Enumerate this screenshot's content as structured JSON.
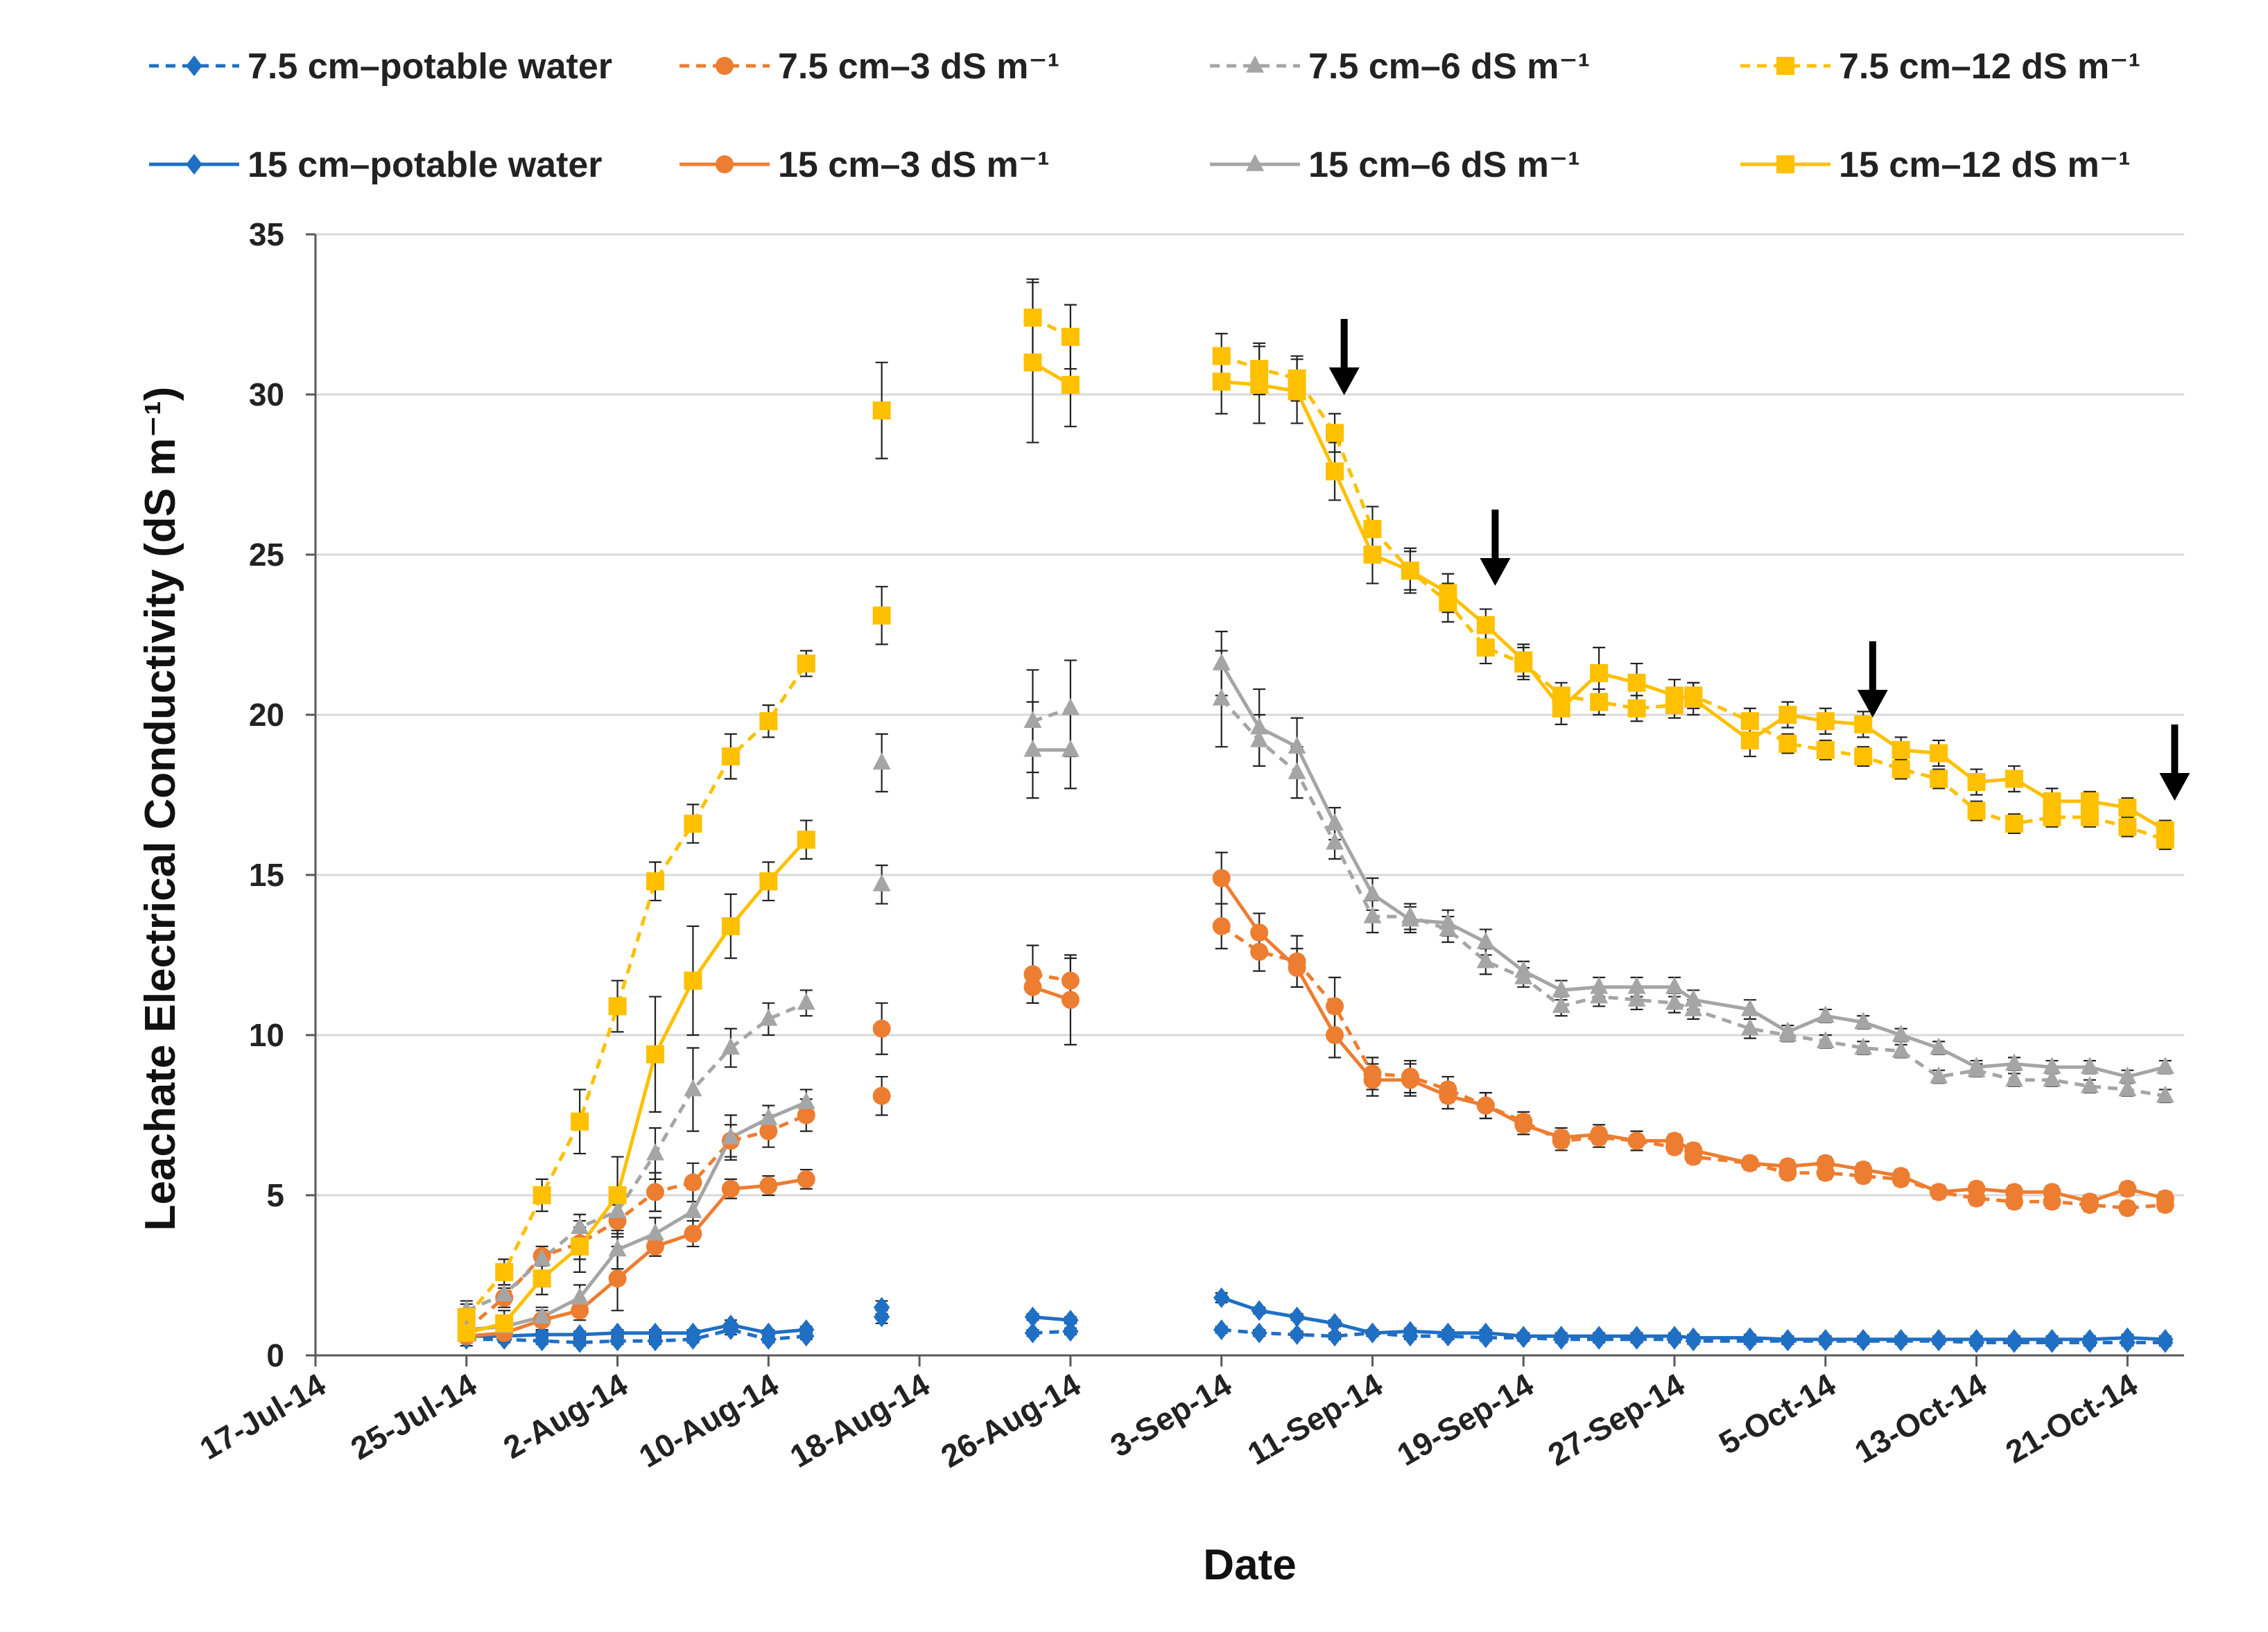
{
  "chart_data": {
    "type": "line",
    "title": "",
    "xlabel": "Date",
    "ylabel": "Leachate Electrical Conductivity (dS m⁻¹)",
    "ylim": [
      0,
      35
    ],
    "yticks": [
      0,
      5,
      10,
      15,
      20,
      25,
      30,
      35
    ],
    "x_is_day_offset_from": "17-Jul-14",
    "xlim": [
      0,
      99
    ],
    "xticks": [
      {
        "day": 0,
        "label": "17-Jul-14"
      },
      {
        "day": 8,
        "label": "25-Jul-14"
      },
      {
        "day": 16,
        "label": "2-Aug-14"
      },
      {
        "day": 24,
        "label": "10-Aug-14"
      },
      {
        "day": 32,
        "label": "18-Aug-14"
      },
      {
        "day": 40,
        "label": "26-Aug-14"
      },
      {
        "day": 48,
        "label": "3-Sep-14"
      },
      {
        "day": 56,
        "label": "11-Sep-14"
      },
      {
        "day": 64,
        "label": "19-Sep-14"
      },
      {
        "day": 72,
        "label": "27-Sep-14"
      },
      {
        "day": 80,
        "label": "5-Oct-14"
      },
      {
        "day": 88,
        "label": "13-Oct-14"
      },
      {
        "day": 96,
        "label": "21-Oct-14"
      }
    ],
    "grid": "horizontal",
    "legend_position": "top",
    "annotations": [
      {
        "type": "arrow",
        "day": 54.5,
        "note": "downward arrow"
      },
      {
        "type": "arrow",
        "day": 62.5,
        "note": "downward arrow"
      },
      {
        "type": "arrow",
        "day": 82.5,
        "note": "downward arrow"
      },
      {
        "type": "arrow",
        "day": 98.5,
        "note": "downward arrow"
      }
    ],
    "series": [
      {
        "name": "7.5 cm–potable water",
        "color": "#1f6fc4",
        "dash": true,
        "marker": "diamond",
        "x": [
          8,
          10,
          12,
          14,
          16,
          18,
          20,
          22,
          24,
          26,
          30,
          38,
          40,
          48,
          50,
          52,
          54,
          56,
          58,
          60,
          62,
          64,
          66,
          68,
          70,
          72,
          73,
          76,
          78,
          80,
          82,
          84,
          86,
          88,
          90,
          92,
          94,
          96,
          98
        ],
        "y": [
          0.5,
          0.5,
          0.45,
          0.4,
          0.45,
          0.45,
          0.5,
          0.8,
          0.5,
          0.6,
          1.2,
          0.7,
          0.75,
          0.8,
          0.7,
          0.65,
          0.6,
          0.7,
          0.6,
          0.6,
          0.55,
          0.55,
          0.5,
          0.5,
          0.5,
          0.5,
          0.45,
          0.45,
          0.45,
          0.45,
          0.45,
          0.45,
          0.45,
          0.4,
          0.4,
          0.4,
          0.4,
          0.4,
          0.4
        ],
        "err": [
          0.1,
          0.1,
          0.1,
          0.1,
          0.1,
          0.1,
          0.1,
          0.15,
          0.1,
          0.1,
          0.2,
          0.1,
          0.1,
          0.1,
          0.1,
          0.1,
          0.1,
          0.1,
          0.1,
          0.1,
          0.1,
          0.1,
          0.1,
          0.1,
          0.1,
          0.1,
          0.1,
          0.1,
          0.1,
          0.1,
          0.1,
          0.1,
          0.1,
          0.1,
          0.1,
          0.1,
          0.1,
          0.1,
          0.1
        ]
      },
      {
        "name": "7.5 cm–3 dS m⁻¹",
        "color": "#ed7d31",
        "dash": true,
        "marker": "circle",
        "x": [
          8,
          10,
          12,
          14,
          16,
          18,
          20,
          22,
          24,
          26,
          30,
          38,
          40,
          48,
          50,
          52,
          54,
          56,
          58,
          60,
          62,
          64,
          66,
          68,
          70,
          72,
          73,
          76,
          78,
          80,
          82,
          84,
          86,
          88,
          90,
          92,
          94,
          96,
          98
        ],
        "y": [
          0.8,
          1.8,
          3.1,
          3.5,
          4.2,
          5.1,
          5.4,
          6.7,
          7.0,
          7.5,
          10.2,
          11.9,
          11.7,
          13.4,
          12.6,
          12.3,
          10.9,
          8.8,
          8.7,
          8.3,
          7.8,
          7.3,
          6.7,
          6.8,
          6.7,
          6.5,
          6.2,
          6.0,
          5.7,
          5.7,
          5.6,
          5.5,
          5.1,
          4.9,
          4.8,
          4.8,
          4.7,
          4.6,
          4.7
        ],
        "err": [
          0.3,
          0.3,
          0.3,
          0.5,
          0.5,
          0.6,
          0.6,
          0.5,
          0.5,
          0.5,
          0.8,
          0.9,
          0.7,
          0.7,
          0.6,
          0.8,
          0.9,
          0.5,
          0.5,
          0.4,
          0.4,
          0.3,
          0.3,
          0.3,
          0.3,
          0.2,
          0.2,
          0.2,
          0.2,
          0.2,
          0.2,
          0.2,
          0.2,
          0.2,
          0.2,
          0.2,
          0.2,
          0.2,
          0.2
        ]
      },
      {
        "name": "7.5 cm–6 dS m⁻¹",
        "color": "#a5a5a5",
        "dash": true,
        "marker": "triangle",
        "x": [
          8,
          10,
          12,
          14,
          16,
          18,
          20,
          22,
          24,
          26,
          30,
          38,
          40,
          48,
          50,
          52,
          54,
          56,
          58,
          60,
          62,
          64,
          66,
          68,
          70,
          72,
          73,
          76,
          78,
          80,
          82,
          84,
          86,
          88,
          90,
          92,
          94,
          96,
          98
        ],
        "y": [
          1.4,
          1.9,
          3.0,
          4.0,
          4.5,
          6.3,
          8.3,
          9.6,
          10.5,
          11.0,
          18.5,
          19.8,
          20.2,
          20.5,
          19.2,
          18.2,
          16.0,
          13.7,
          13.7,
          13.3,
          12.3,
          11.8,
          10.9,
          11.2,
          11.1,
          11.0,
          10.8,
          10.2,
          10.0,
          9.8,
          9.6,
          9.5,
          8.7,
          8.9,
          8.6,
          8.6,
          8.4,
          8.3,
          8.1
        ],
        "err": [
          0.3,
          0.3,
          0.4,
          0.4,
          0.5,
          0.8,
          1.3,
          0.6,
          0.5,
          0.4,
          0.9,
          1.6,
          1.5,
          1.5,
          0.8,
          0.8,
          0.5,
          0.5,
          0.4,
          0.4,
          0.4,
          0.3,
          0.3,
          0.3,
          0.3,
          0.3,
          0.3,
          0.3,
          0.2,
          0.2,
          0.2,
          0.2,
          0.2,
          0.2,
          0.2,
          0.2,
          0.2,
          0.2,
          0.2
        ]
      },
      {
        "name": "7.5 cm–12 dS m⁻¹",
        "color": "#ffc000",
        "dash": true,
        "marker": "square",
        "x": [
          8,
          10,
          12,
          14,
          16,
          18,
          20,
          22,
          24,
          26,
          30,
          38,
          40,
          48,
          50,
          52,
          54,
          56,
          58,
          60,
          62,
          64,
          66,
          68,
          70,
          72,
          73,
          76,
          78,
          80,
          82,
          84,
          86,
          88,
          90,
          92,
          94,
          96,
          98
        ],
        "y": [
          1.2,
          2.6,
          5.0,
          7.3,
          10.9,
          14.8,
          16.6,
          18.7,
          19.8,
          21.6,
          29.5,
          32.4,
          31.8,
          31.2,
          30.8,
          30.5,
          28.8,
          25.8,
          24.5,
          23.5,
          22.1,
          21.6,
          20.6,
          20.4,
          20.2,
          20.3,
          20.6,
          19.8,
          19.1,
          18.9,
          18.7,
          18.3,
          18.0,
          17.0,
          16.6,
          16.8,
          16.8,
          16.5,
          16.1
        ],
        "err": [
          0.4,
          0.4,
          0.5,
          1.0,
          0.8,
          0.6,
          0.6,
          0.7,
          0.5,
          0.4,
          1.5,
          1.2,
          1.0,
          0.7,
          0.8,
          0.7,
          0.6,
          0.7,
          0.6,
          0.6,
          0.5,
          0.5,
          0.4,
          0.4,
          0.4,
          0.4,
          0.4,
          0.4,
          0.3,
          0.3,
          0.3,
          0.3,
          0.3,
          0.3,
          0.3,
          0.3,
          0.3,
          0.3,
          0.3
        ]
      },
      {
        "name": "15 cm–potable water",
        "color": "#1f6fc4",
        "dash": false,
        "marker": "diamond",
        "x": [
          8,
          10,
          12,
          14,
          16,
          18,
          20,
          22,
          24,
          26,
          30,
          38,
          40,
          48,
          50,
          52,
          54,
          56,
          58,
          60,
          62,
          64,
          66,
          68,
          70,
          72,
          73,
          76,
          78,
          80,
          82,
          84,
          86,
          88,
          90,
          92,
          94,
          96,
          98
        ],
        "y": [
          0.6,
          0.6,
          0.65,
          0.65,
          0.7,
          0.7,
          0.7,
          0.95,
          0.7,
          0.8,
          1.5,
          1.2,
          1.1,
          1.8,
          1.4,
          1.2,
          1.0,
          0.7,
          0.75,
          0.7,
          0.7,
          0.6,
          0.6,
          0.6,
          0.6,
          0.6,
          0.55,
          0.55,
          0.5,
          0.5,
          0.5,
          0.5,
          0.5,
          0.5,
          0.5,
          0.5,
          0.5,
          0.55,
          0.5
        ],
        "err": [
          0.1,
          0.1,
          0.1,
          0.1,
          0.1,
          0.1,
          0.1,
          0.15,
          0.1,
          0.1,
          0.2,
          0.1,
          0.1,
          0.15,
          0.1,
          0.1,
          0.1,
          0.1,
          0.1,
          0.1,
          0.1,
          0.1,
          0.1,
          0.1,
          0.1,
          0.1,
          0.1,
          0.1,
          0.1,
          0.1,
          0.1,
          0.1,
          0.1,
          0.1,
          0.1,
          0.1,
          0.1,
          0.1,
          0.1
        ]
      },
      {
        "name": "15 cm–3 dS m⁻¹",
        "color": "#ed7d31",
        "dash": false,
        "marker": "circle",
        "x": [
          8,
          10,
          12,
          14,
          16,
          18,
          20,
          22,
          24,
          26,
          30,
          38,
          40,
          48,
          50,
          52,
          54,
          56,
          58,
          60,
          62,
          64,
          66,
          68,
          70,
          72,
          73,
          76,
          78,
          80,
          82,
          84,
          86,
          88,
          90,
          92,
          94,
          96,
          98
        ],
        "y": [
          0.6,
          0.7,
          1.1,
          1.4,
          2.4,
          3.4,
          3.8,
          5.2,
          5.3,
          5.5,
          8.1,
          11.5,
          11.1,
          14.9,
          13.2,
          12.1,
          10.0,
          8.6,
          8.6,
          8.1,
          7.8,
          7.2,
          6.8,
          6.9,
          6.7,
          6.7,
          6.4,
          6.0,
          5.9,
          6.0,
          5.8,
          5.6,
          5.1,
          5.2,
          5.1,
          5.1,
          4.8,
          5.2,
          4.9
        ],
        "err": [
          0.2,
          0.2,
          0.3,
          0.3,
          1.0,
          0.3,
          0.4,
          0.3,
          0.3,
          0.3,
          0.6,
          0.5,
          1.4,
          0.8,
          0.6,
          0.6,
          0.7,
          0.5,
          0.5,
          0.4,
          0.4,
          0.3,
          0.3,
          0.3,
          0.3,
          0.2,
          0.2,
          0.2,
          0.2,
          0.2,
          0.2,
          0.2,
          0.2,
          0.2,
          0.2,
          0.2,
          0.2,
          0.2,
          0.2
        ]
      },
      {
        "name": "15 cm–6 dS m⁻¹",
        "color": "#a5a5a5",
        "dash": false,
        "marker": "triangle",
        "x": [
          8,
          10,
          12,
          14,
          16,
          18,
          20,
          22,
          24,
          26,
          30,
          38,
          40,
          48,
          50,
          52,
          54,
          56,
          58,
          60,
          62,
          64,
          66,
          68,
          70,
          72,
          73,
          76,
          78,
          80,
          82,
          84,
          86,
          88,
          90,
          92,
          94,
          96,
          98
        ],
        "y": [
          0.8,
          0.9,
          1.2,
          1.8,
          3.3,
          3.8,
          4.5,
          6.8,
          7.4,
          7.9,
          14.7,
          18.9,
          18.9,
          21.6,
          19.6,
          19.0,
          16.6,
          14.4,
          13.6,
          13.5,
          12.9,
          12.0,
          11.4,
          11.5,
          11.5,
          11.5,
          11.1,
          10.8,
          10.1,
          10.6,
          10.4,
          10.0,
          9.6,
          9.0,
          9.1,
          9.0,
          9.0,
          8.7,
          9.0
        ],
        "err": [
          0.2,
          0.2,
          0.3,
          0.4,
          0.6,
          0.5,
          0.7,
          0.7,
          0.4,
          0.4,
          0.6,
          1.5,
          1.2,
          1.0,
          1.2,
          0.9,
          0.5,
          0.5,
          0.4,
          0.4,
          0.4,
          0.3,
          0.3,
          0.3,
          0.3,
          0.3,
          0.3,
          0.3,
          0.2,
          0.2,
          0.2,
          0.2,
          0.2,
          0.2,
          0.2,
          0.2,
          0.2,
          0.2,
          0.2
        ]
      },
      {
        "name": "15 cm–12 dS m⁻¹",
        "color": "#ffc000",
        "dash": false,
        "marker": "square",
        "x": [
          8,
          10,
          12,
          14,
          16,
          18,
          20,
          22,
          24,
          26,
          30,
          38,
          40,
          48,
          50,
          52,
          54,
          56,
          58,
          60,
          62,
          64,
          66,
          68,
          70,
          72,
          73,
          76,
          78,
          80,
          82,
          84,
          86,
          88,
          90,
          92,
          94,
          96,
          98
        ],
        "y": [
          0.7,
          1.0,
          2.4,
          3.4,
          5.0,
          9.4,
          11.7,
          13.4,
          14.8,
          16.1,
          23.1,
          31.0,
          30.3,
          30.4,
          30.3,
          30.1,
          27.6,
          25.0,
          24.5,
          23.8,
          22.8,
          21.7,
          20.2,
          21.3,
          21.0,
          20.6,
          20.5,
          19.2,
          20.0,
          19.8,
          19.7,
          18.9,
          18.8,
          17.9,
          18.0,
          17.3,
          17.3,
          17.1,
          16.4
        ],
        "err": [
          0.4,
          0.4,
          0.5,
          0.8,
          1.2,
          1.8,
          1.7,
          1.0,
          0.6,
          0.6,
          0.9,
          2.5,
          1.3,
          1.0,
          1.2,
          1.0,
          0.9,
          0.9,
          0.7,
          0.6,
          0.5,
          0.5,
          0.5,
          0.8,
          0.6,
          0.5,
          0.5,
          0.5,
          0.4,
          0.4,
          0.4,
          0.4,
          0.4,
          0.4,
          0.4,
          0.4,
          0.3,
          0.3,
          0.3
        ]
      }
    ]
  }
}
